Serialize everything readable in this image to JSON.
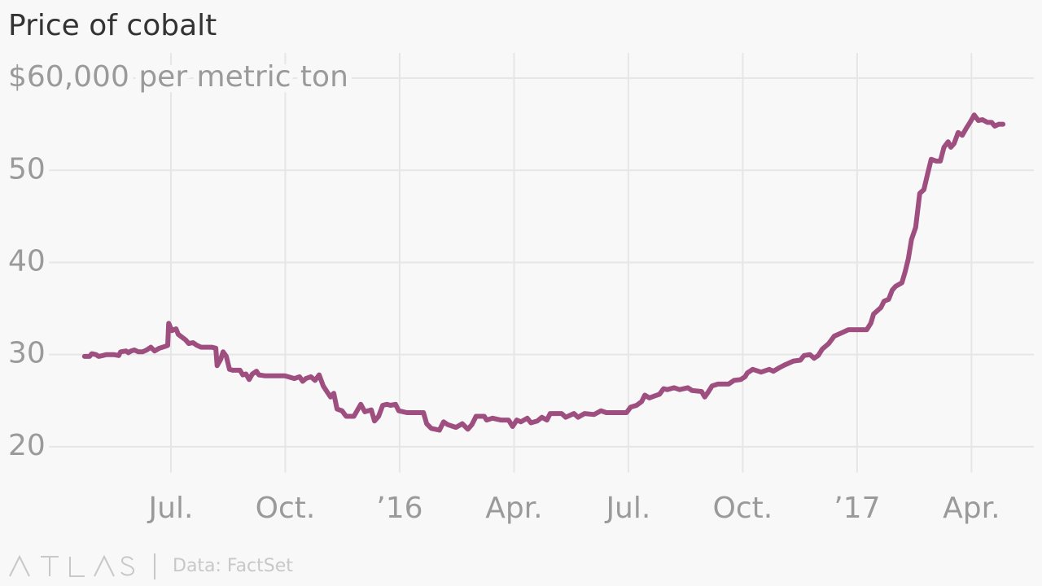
{
  "chart_data": {
    "type": "line",
    "title": "Price of cobalt",
    "source": "Data: FactSet",
    "color": "#9e4f80",
    "grid": true,
    "x": [
      2015.311,
      2015.322,
      2015.327,
      2015.336,
      2015.342,
      2015.351,
      2015.359,
      2015.375,
      2015.386,
      2015.39,
      2015.402,
      2015.407,
      2015.413,
      2015.42,
      2015.429,
      2015.438,
      2015.447,
      2015.456,
      2015.464,
      2015.475,
      2015.488,
      2015.493,
      2015.495,
      2015.502,
      2015.511,
      2015.516,
      2015.532,
      2015.539,
      2015.548,
      2015.557,
      2015.566,
      2015.589,
      2015.598,
      2015.601,
      2015.609,
      2015.614,
      2015.621,
      2015.628,
      2015.635,
      2015.651,
      2015.657,
      2015.664,
      2015.671,
      2015.678,
      2015.687,
      2015.692,
      2015.705,
      2015.749,
      2015.763,
      2015.77,
      2015.781,
      2015.788,
      2015.795,
      2015.806,
      2015.815,
      2015.824,
      2015.833,
      2015.842,
      2015.849,
      2015.856,
      2015.863,
      2015.874,
      2015.883,
      2015.9,
      2015.915,
      2015.924,
      2015.931,
      2015.938,
      2015.945,
      2015.954,
      2015.963,
      2015.972,
      2015.98,
      2015.991,
      2015.998,
      2016.016,
      2016.052,
      2016.059,
      2016.069,
      2016.087,
      2016.096,
      2016.105,
      2016.123,
      2016.137,
      2016.149,
      2016.158,
      2016.167,
      2016.185,
      2016.19,
      2016.203,
      2016.221,
      2016.238,
      2016.247,
      2016.256,
      2016.265,
      2016.279,
      2016.287,
      2016.301,
      2016.311,
      2016.322,
      2016.329,
      2016.354,
      2016.363,
      2016.381,
      2016.39,
      2016.404,
      2016.425,
      2016.44,
      2016.452,
      2016.496,
      2016.505,
      2016.518,
      2016.529,
      2016.536,
      2016.546,
      2016.557,
      2016.568,
      2016.577,
      2016.585,
      2016.6,
      2016.612,
      2016.63,
      2016.639,
      2016.66,
      2016.667,
      2016.674,
      2016.683,
      2016.696,
      2016.719,
      2016.731,
      2016.746,
      2016.755,
      2016.76,
      2016.772,
      2016.79,
      2016.808,
      2016.817,
      2016.831,
      2016.843,
      2016.861,
      2016.876,
      2016.884,
      2016.897,
      2016.906,
      2016.915,
      2016.924,
      2016.938,
      2016.95,
      2016.968,
      2016.981,
      2017.021,
      2017.03,
      2017.036,
      2017.052,
      2017.059,
      2017.069,
      2017.077,
      2017.084,
      2017.098,
      2017.105,
      2017.112,
      2017.119,
      2017.128,
      2017.137,
      2017.146,
      2017.155,
      2017.162,
      2017.173,
      2017.182,
      2017.19,
      2017.199,
      2017.205,
      2017.212,
      2017.221,
      2017.23,
      2017.239,
      2017.247,
      2017.256,
      2017.265,
      2017.274,
      2017.285,
      2017.294,
      2017.301,
      2017.31,
      2017.319
    ],
    "values": [
      29.8,
      29.8,
      30.1,
      30.0,
      29.8,
      29.9,
      30.0,
      30.0,
      29.9,
      30.3,
      30.4,
      30.2,
      30.4,
      30.5,
      30.3,
      30.3,
      30.5,
      30.8,
      30.4,
      30.7,
      30.9,
      31.0,
      33.4,
      32.6,
      32.8,
      32.2,
      31.6,
      31.2,
      31.3,
      31.0,
      30.8,
      30.8,
      30.7,
      28.8,
      29.5,
      30.3,
      29.8,
      28.4,
      28.3,
      28.3,
      27.8,
      27.9,
      27.3,
      27.9,
      28.2,
      27.8,
      27.7,
      27.7,
      27.5,
      27.4,
      27.6,
      27.1,
      27.4,
      27.6,
      27.2,
      27.8,
      26.6,
      25.9,
      25.4,
      25.8,
      24.1,
      23.9,
      23.3,
      23.3,
      24.6,
      23.8,
      23.9,
      24.0,
      22.8,
      23.3,
      24.5,
      24.6,
      24.5,
      24.6,
      23.9,
      23.7,
      23.7,
      22.5,
      22.0,
      21.8,
      22.7,
      22.4,
      22.1,
      22.5,
      21.9,
      22.4,
      23.3,
      23.3,
      22.9,
      23.1,
      22.9,
      22.9,
      22.2,
      22.9,
      22.7,
      23.1,
      22.6,
      22.8,
      23.2,
      22.9,
      23.6,
      23.6,
      23.2,
      23.6,
      23.2,
      23.6,
      23.5,
      23.9,
      23.7,
      23.7,
      24.3,
      24.5,
      24.9,
      25.6,
      25.3,
      25.5,
      25.7,
      26.3,
      26.2,
      26.4,
      26.2,
      26.4,
      26.1,
      26.0,
      25.4,
      25.9,
      26.6,
      26.8,
      26.8,
      27.2,
      27.3,
      27.6,
      28.0,
      28.4,
      28.1,
      28.4,
      28.2,
      28.6,
      28.9,
      29.3,
      29.4,
      29.9,
      30.0,
      29.6,
      29.9,
      30.6,
      31.2,
      32.0,
      32.4,
      32.7,
      32.7,
      33.4,
      34.4,
      35.1,
      35.8,
      36.0,
      37.0,
      37.4,
      37.8,
      39.0,
      40.4,
      42.5,
      43.8,
      47.5,
      47.9,
      49.8,
      51.2,
      51.0,
      51.0,
      52.5,
      53.1,
      52.5,
      52.9,
      54.1,
      53.8,
      54.6,
      55.2,
      56.0,
      55.4,
      55.5,
      55.2,
      55.2,
      54.8,
      55.0,
      55.0
    ],
    "xlim": [
      2015.3,
      2017.39
    ],
    "xticks": [
      {
        "value": 2015.5,
        "label": "Jul."
      },
      {
        "value": 2015.75,
        "label": "Oct."
      },
      {
        "value": 2016,
        "label": "’16"
      },
      {
        "value": 2016.25,
        "label": "Apr."
      },
      {
        "value": 2016.5,
        "label": "Jul."
      },
      {
        "value": 2016.75,
        "label": "Oct."
      },
      {
        "value": 2017,
        "label": "’17"
      },
      {
        "value": 2017.25,
        "label": "Apr."
      }
    ],
    "ylim": [
      17.2,
      62.6
    ],
    "yticks": [
      20,
      30,
      40,
      {
        "value": 50,
        "label": "50"
      },
      {
        "value": 60,
        "label": "$60,000 per metric ton"
      }
    ]
  }
}
